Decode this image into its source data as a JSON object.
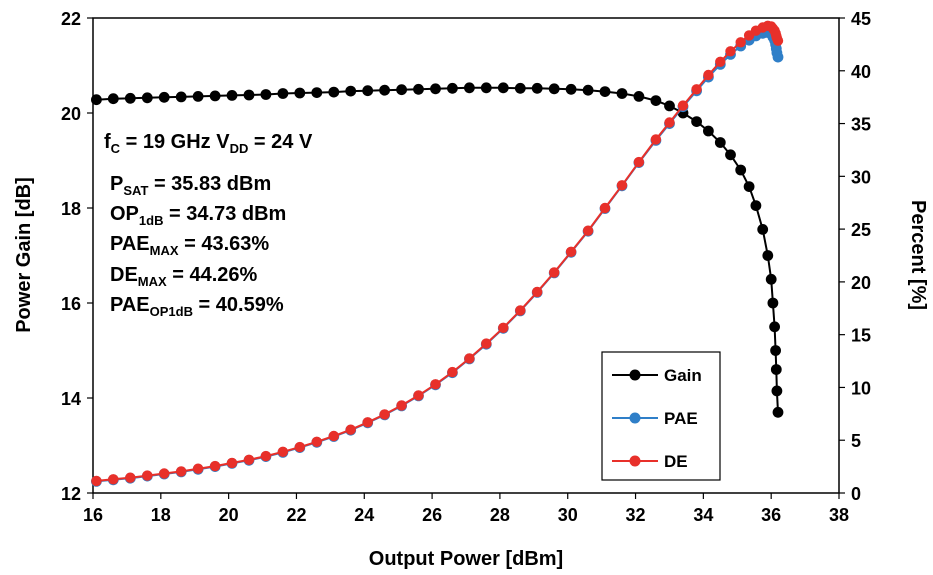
{
  "chart_data": {
    "type": "scatter",
    "title": "",
    "xlabel": "Output Power [dBm]",
    "ylabel": "Power Gain [dB]",
    "y2label": "Percent [%]",
    "xlim": [
      16,
      38
    ],
    "ylim": [
      12,
      22
    ],
    "y2lim": [
      0,
      45
    ],
    "x_ticks": [
      "16",
      "18",
      "20",
      "22",
      "24",
      "26",
      "28",
      "30",
      "32",
      "34",
      "36",
      "38"
    ],
    "y_ticks": [
      "12",
      "14",
      "16",
      "18",
      "20",
      "22"
    ],
    "y2_ticks": [
      "0",
      "5",
      "10",
      "15",
      "20",
      "25",
      "30",
      "35",
      "40",
      "45"
    ],
    "grid": false,
    "legend_position": "bottom-right",
    "annotations": [
      {
        "id": "fc",
        "parts": [
          [
            "f",
            ""
          ],
          [
            "C",
            "sub"
          ],
          [
            " = 19 GHz  V",
            ""
          ],
          [
            "DD",
            "sub"
          ],
          [
            " = 24 V",
            ""
          ]
        ]
      },
      {
        "id": "psat",
        "parts": [
          [
            "P",
            ""
          ],
          [
            "SAT",
            "sub"
          ],
          [
            " = 35.83 dBm",
            ""
          ]
        ]
      },
      {
        "id": "op1db",
        "parts": [
          [
            "OP",
            ""
          ],
          [
            "1dB",
            "sub"
          ],
          [
            " = 34.73 dBm",
            ""
          ]
        ]
      },
      {
        "id": "paemax",
        "parts": [
          [
            "PAE",
            ""
          ],
          [
            "MAX",
            "sub"
          ],
          [
            " = 43.63%",
            ""
          ]
        ]
      },
      {
        "id": "demax",
        "parts": [
          [
            "DE",
            ""
          ],
          [
            "MAX",
            "sub"
          ],
          [
            " = 44.26%",
            ""
          ]
        ]
      },
      {
        "id": "paeop1db",
        "parts": [
          [
            "PAE",
            ""
          ],
          [
            "OP1dB",
            "sub"
          ],
          [
            " = 40.59%",
            ""
          ]
        ]
      }
    ],
    "series": [
      {
        "name": "Gain",
        "axis": "left",
        "color": "#000000",
        "points": [
          [
            16.1,
            20.28
          ],
          [
            16.6,
            20.3
          ],
          [
            17.1,
            20.31
          ],
          [
            17.6,
            20.32
          ],
          [
            18.1,
            20.33
          ],
          [
            18.6,
            20.34
          ],
          [
            19.1,
            20.35
          ],
          [
            19.6,
            20.36
          ],
          [
            20.1,
            20.37
          ],
          [
            20.6,
            20.38
          ],
          [
            21.1,
            20.39
          ],
          [
            21.6,
            20.41
          ],
          [
            22.1,
            20.42
          ],
          [
            22.6,
            20.43
          ],
          [
            23.1,
            20.44
          ],
          [
            23.6,
            20.46
          ],
          [
            24.1,
            20.47
          ],
          [
            24.6,
            20.48
          ],
          [
            25.1,
            20.49
          ],
          [
            25.6,
            20.5
          ],
          [
            26.1,
            20.51
          ],
          [
            26.6,
            20.52
          ],
          [
            27.1,
            20.53
          ],
          [
            27.6,
            20.53
          ],
          [
            28.1,
            20.53
          ],
          [
            28.6,
            20.52
          ],
          [
            29.1,
            20.52
          ],
          [
            29.6,
            20.51
          ],
          [
            30.1,
            20.5
          ],
          [
            30.6,
            20.48
          ],
          [
            31.1,
            20.45
          ],
          [
            31.6,
            20.41
          ],
          [
            32.1,
            20.35
          ],
          [
            32.6,
            20.26
          ],
          [
            33.0,
            20.15
          ],
          [
            33.4,
            20.0
          ],
          [
            33.8,
            19.82
          ],
          [
            34.15,
            19.62
          ],
          [
            34.5,
            19.38
          ],
          [
            34.8,
            19.12
          ],
          [
            35.1,
            18.8
          ],
          [
            35.35,
            18.45
          ],
          [
            35.55,
            18.05
          ],
          [
            35.75,
            17.55
          ],
          [
            35.9,
            17.0
          ],
          [
            36.0,
            16.5
          ],
          [
            36.05,
            16.0
          ],
          [
            36.1,
            15.5
          ],
          [
            36.13,
            15.0
          ],
          [
            36.15,
            14.6
          ],
          [
            36.17,
            14.15
          ],
          [
            36.2,
            13.7
          ]
        ]
      },
      {
        "name": "PAE",
        "axis": "right",
        "color": "#2f7fc8",
        "points": [
          [
            16.1,
            1.1
          ],
          [
            16.6,
            1.25
          ],
          [
            17.1,
            1.4
          ],
          [
            17.6,
            1.6
          ],
          [
            18.1,
            1.8
          ],
          [
            18.6,
            2.0
          ],
          [
            19.1,
            2.25
          ],
          [
            19.6,
            2.5
          ],
          [
            20.1,
            2.8
          ],
          [
            20.6,
            3.1
          ],
          [
            21.1,
            3.45
          ],
          [
            21.6,
            3.85
          ],
          [
            22.1,
            4.3
          ],
          [
            22.6,
            4.8
          ],
          [
            23.1,
            5.35
          ],
          [
            23.6,
            5.95
          ],
          [
            24.1,
            6.65
          ],
          [
            24.6,
            7.4
          ],
          [
            25.1,
            8.25
          ],
          [
            25.6,
            9.2
          ],
          [
            26.1,
            10.25
          ],
          [
            26.6,
            11.4
          ],
          [
            27.1,
            12.7
          ],
          [
            27.6,
            14.1
          ],
          [
            28.1,
            15.6
          ],
          [
            28.6,
            17.25
          ],
          [
            29.1,
            19.0
          ],
          [
            29.6,
            20.85
          ],
          [
            30.1,
            22.8
          ],
          [
            30.6,
            24.8
          ],
          [
            31.1,
            26.95
          ],
          [
            31.6,
            29.1
          ],
          [
            32.1,
            31.3
          ],
          [
            32.6,
            33.4
          ],
          [
            33.0,
            35.0
          ],
          [
            33.4,
            36.6
          ],
          [
            33.8,
            38.1
          ],
          [
            34.15,
            39.4
          ],
          [
            34.5,
            40.6
          ],
          [
            34.8,
            41.55
          ],
          [
            35.1,
            42.35
          ],
          [
            35.35,
            42.9
          ],
          [
            35.55,
            43.3
          ],
          [
            35.75,
            43.55
          ],
          [
            35.9,
            43.63
          ],
          [
            36.0,
            43.5
          ],
          [
            36.05,
            43.2
          ],
          [
            36.1,
            42.9
          ],
          [
            36.13,
            42.5
          ],
          [
            36.15,
            42.1
          ],
          [
            36.17,
            41.7
          ],
          [
            36.2,
            41.3
          ]
        ]
      },
      {
        "name": "DE",
        "axis": "right",
        "color": "#e8302a",
        "points": [
          [
            16.1,
            1.15
          ],
          [
            16.6,
            1.3
          ],
          [
            17.1,
            1.45
          ],
          [
            17.6,
            1.65
          ],
          [
            18.1,
            1.85
          ],
          [
            18.6,
            2.05
          ],
          [
            19.1,
            2.3
          ],
          [
            19.6,
            2.55
          ],
          [
            20.1,
            2.85
          ],
          [
            20.6,
            3.15
          ],
          [
            21.1,
            3.5
          ],
          [
            21.6,
            3.9
          ],
          [
            22.1,
            4.35
          ],
          [
            22.6,
            4.85
          ],
          [
            23.1,
            5.4
          ],
          [
            23.6,
            6.0
          ],
          [
            24.1,
            6.7
          ],
          [
            24.6,
            7.45
          ],
          [
            25.1,
            8.3
          ],
          [
            25.6,
            9.25
          ],
          [
            26.1,
            10.3
          ],
          [
            26.6,
            11.45
          ],
          [
            27.1,
            12.75
          ],
          [
            27.6,
            14.15
          ],
          [
            28.1,
            15.65
          ],
          [
            28.6,
            17.3
          ],
          [
            29.1,
            19.05
          ],
          [
            29.6,
            20.9
          ],
          [
            30.1,
            22.85
          ],
          [
            30.6,
            24.85
          ],
          [
            31.1,
            27.0
          ],
          [
            31.6,
            29.15
          ],
          [
            32.1,
            31.35
          ],
          [
            32.6,
            33.5
          ],
          [
            33.0,
            35.1
          ],
          [
            33.4,
            36.7
          ],
          [
            33.8,
            38.25
          ],
          [
            34.15,
            39.6
          ],
          [
            34.5,
            40.85
          ],
          [
            34.8,
            41.85
          ],
          [
            35.1,
            42.7
          ],
          [
            35.35,
            43.35
          ],
          [
            35.55,
            43.8
          ],
          [
            35.75,
            44.1
          ],
          [
            35.9,
            44.26
          ],
          [
            36.0,
            44.2
          ],
          [
            36.05,
            44.0
          ],
          [
            36.1,
            43.8
          ],
          [
            36.13,
            43.55
          ],
          [
            36.15,
            43.3
          ],
          [
            36.17,
            43.1
          ],
          [
            36.2,
            42.85
          ]
        ]
      }
    ]
  }
}
